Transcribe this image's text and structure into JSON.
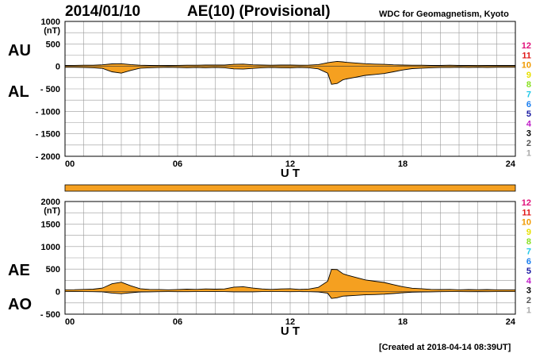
{
  "header": {
    "date": "2014/01/10",
    "title": "AE(10) (Provisional)",
    "organization": "WDC for Geomagnetism, Kyoto"
  },
  "footer": {
    "created": "[Created at 2018-04-14 08:39UT]"
  },
  "colors": {
    "fill": "#f5a020",
    "line": "#000000",
    "grid": "#999999"
  },
  "station_legend": [
    {
      "label": "12",
      "color": "#e0107a"
    },
    {
      "label": "11",
      "color": "#e01818"
    },
    {
      "label": "10",
      "color": "#f09a00"
    },
    {
      "label": "9",
      "color": "#e8e000"
    },
    {
      "label": "8",
      "color": "#88e020"
    },
    {
      "label": "7",
      "color": "#20c8e8"
    },
    {
      "label": "6",
      "color": "#1a7ef0"
    },
    {
      "label": "5",
      "color": "#1818a0"
    },
    {
      "label": "4",
      "color": "#c020c8"
    },
    {
      "label": "3",
      "color": "#000000"
    },
    {
      "label": "2",
      "color": "#555555"
    },
    {
      "label": "1",
      "color": "#aaaaaa"
    }
  ],
  "chart_data": [
    {
      "type": "area",
      "ylabel": "(nT)",
      "xlabel": "U T",
      "xlim": [
        0,
        24
      ],
      "ylim": [
        -2000,
        1000
      ],
      "xticks": [
        "00",
        "06",
        "12",
        "18",
        "24"
      ],
      "yticks": [
        "1000",
        "500",
        "0",
        "- 500",
        "- 1000",
        "- 1500",
        "- 2000"
      ],
      "upper_label": "AU",
      "lower_label": "AL",
      "series": [
        {
          "name": "AU",
          "x": [
            0,
            0.5,
            1,
            1.5,
            2,
            2.5,
            3,
            3.5,
            4,
            4.5,
            5,
            5.5,
            6,
            6.5,
            7,
            7.5,
            8,
            8.5,
            9,
            9.5,
            10,
            10.5,
            11,
            11.5,
            12,
            12.5,
            13,
            13.5,
            14,
            14.2,
            14.5,
            14.8,
            15,
            15.5,
            16,
            16.5,
            17,
            17.5,
            18,
            18.5,
            19,
            19.5,
            20,
            20.5,
            21,
            21.5,
            22,
            22.5,
            23,
            23.5,
            24
          ],
          "values": [
            20,
            22,
            25,
            25,
            35,
            55,
            60,
            40,
            25,
            20,
            22,
            20,
            22,
            25,
            25,
            30,
            30,
            30,
            45,
            50,
            35,
            30,
            25,
            30,
            30,
            25,
            28,
            40,
            80,
            95,
            110,
            100,
            90,
            75,
            60,
            50,
            45,
            35,
            30,
            25,
            25,
            20,
            20,
            25,
            20,
            20,
            22,
            20,
            20,
            20,
            20
          ]
        },
        {
          "name": "AL",
          "x": [
            0,
            0.5,
            1,
            1.5,
            2,
            2.5,
            3,
            3.5,
            4,
            4.5,
            5,
            5.5,
            6,
            6.5,
            7,
            7.5,
            8,
            8.5,
            9,
            9.5,
            10,
            10.5,
            11,
            11.5,
            12,
            12.5,
            13,
            13.5,
            14,
            14.2,
            14.5,
            14.8,
            15,
            15.5,
            16,
            16.5,
            17,
            17.5,
            18,
            18.5,
            19,
            19.5,
            20,
            20.5,
            21,
            21.5,
            22,
            22.5,
            23,
            23.5,
            24
          ],
          "values": [
            -20,
            -20,
            -25,
            -30,
            -45,
            -120,
            -150,
            -90,
            -40,
            -30,
            -25,
            -20,
            -25,
            -30,
            -25,
            -30,
            -25,
            -30,
            -55,
            -60,
            -45,
            -30,
            -25,
            -30,
            -35,
            -25,
            -30,
            -55,
            -150,
            -400,
            -380,
            -300,
            -280,
            -240,
            -200,
            -180,
            -160,
            -120,
            -80,
            -50,
            -40,
            -30,
            -25,
            -25,
            -20,
            -25,
            -20,
            -25,
            -20,
            -20,
            -20
          ]
        }
      ]
    },
    {
      "type": "area",
      "ylabel": "(nT)",
      "xlabel": "U T",
      "xlim": [
        0,
        24
      ],
      "ylim": [
        -500,
        2000
      ],
      "xticks": [
        "00",
        "06",
        "12",
        "18",
        "24"
      ],
      "yticks": [
        "2000",
        "1500",
        "1000",
        "500",
        "0",
        "- 500"
      ],
      "upper_label": "AE",
      "lower_label": "AO",
      "series": [
        {
          "name": "AE",
          "x": [
            0,
            0.5,
            1,
            1.5,
            2,
            2.5,
            3,
            3.5,
            4,
            4.5,
            5,
            5.5,
            6,
            6.5,
            7,
            7.5,
            8,
            8.5,
            9,
            9.5,
            10,
            10.5,
            11,
            11.5,
            12,
            12.5,
            13,
            13.5,
            14,
            14.2,
            14.5,
            14.8,
            15,
            15.5,
            16,
            16.5,
            17,
            17.5,
            18,
            18.5,
            19,
            19.5,
            20,
            20.5,
            21,
            21.5,
            22,
            22.5,
            23,
            23.5,
            24
          ],
          "values": [
            40,
            42,
            50,
            55,
            80,
            175,
            210,
            130,
            65,
            50,
            47,
            40,
            47,
            55,
            50,
            60,
            55,
            60,
            100,
            110,
            80,
            60,
            50,
            60,
            65,
            50,
            58,
            95,
            230,
            495,
            490,
            400,
            370,
            315,
            260,
            230,
            205,
            155,
            110,
            75,
            65,
            50,
            45,
            50,
            40,
            45,
            42,
            45,
            40,
            40,
            40
          ]
        },
        {
          "name": "AO",
          "x": [
            0,
            0.5,
            1,
            1.5,
            2,
            2.5,
            3,
            3.5,
            4,
            4.5,
            5,
            5.5,
            6,
            6.5,
            7,
            7.5,
            8,
            8.5,
            9,
            9.5,
            10,
            10.5,
            11,
            11.5,
            12,
            12.5,
            13,
            13.5,
            14,
            14.2,
            14.5,
            14.8,
            15,
            15.5,
            16,
            16.5,
            17,
            17.5,
            18,
            18.5,
            19,
            19.5,
            20,
            20.5,
            21,
            21.5,
            22,
            22.5,
            23,
            23.5,
            24
          ],
          "values": [
            0,
            1,
            0,
            -2,
            -5,
            -32,
            -45,
            -25,
            -7,
            -5,
            -1,
            0,
            -1,
            -2,
            0,
            0,
            2,
            0,
            -5,
            -5,
            -5,
            0,
            0,
            0,
            -2,
            0,
            -1,
            -7,
            -35,
            -152,
            -135,
            -100,
            -95,
            -82,
            -70,
            -65,
            -57,
            -42,
            -25,
            -12,
            -7,
            -5,
            -2,
            0,
            0,
            -2,
            1,
            -2,
            0,
            0,
            0
          ]
        }
      ]
    }
  ]
}
